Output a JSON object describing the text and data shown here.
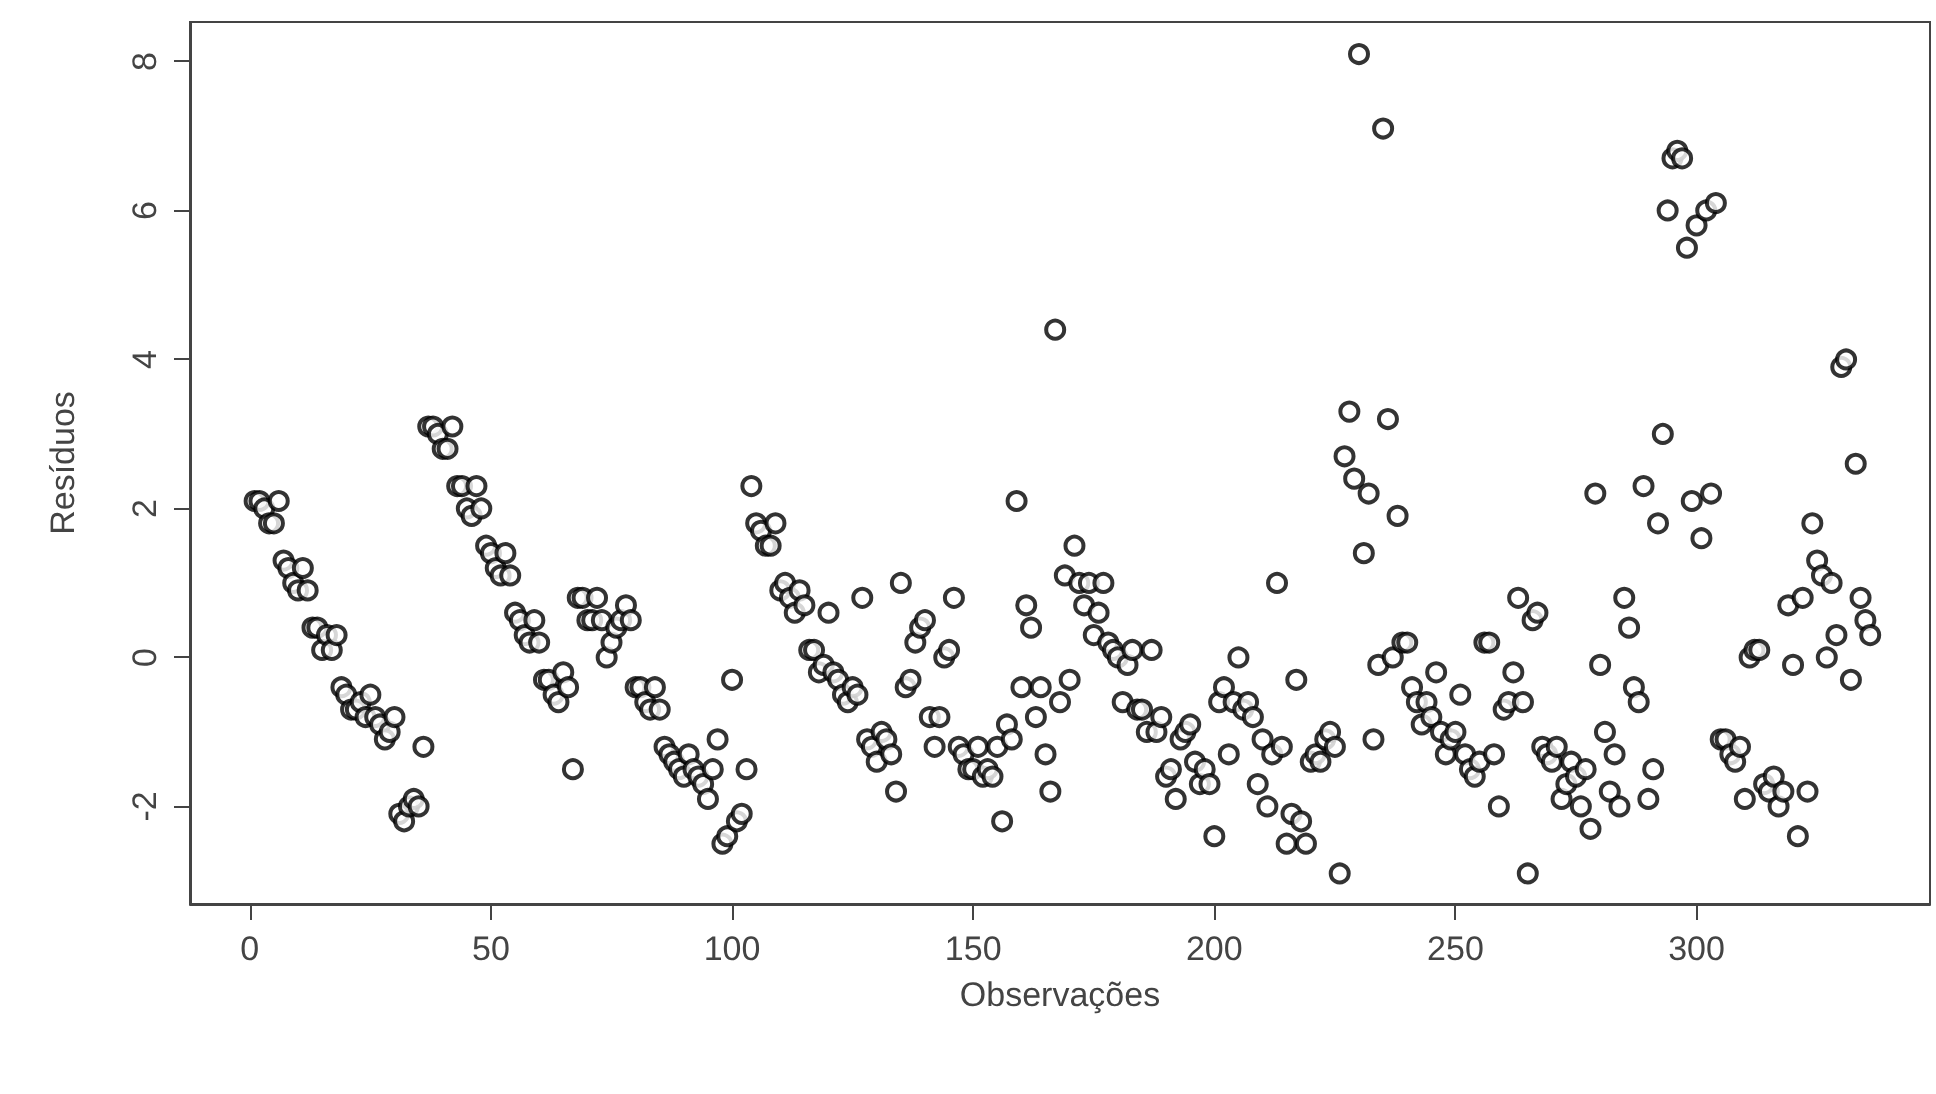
{
  "chart_data": {
    "type": "scatter",
    "xlabel": "Observações",
    "ylabel": "Resíduos",
    "x": [
      1,
      2,
      3,
      4,
      5,
      6,
      7,
      8,
      9,
      10,
      11,
      12,
      13,
      14,
      15,
      16,
      17,
      18,
      19,
      20,
      21,
      22,
      23,
      24,
      25,
      26,
      27,
      28,
      29,
      30,
      31,
      32,
      33,
      34,
      35,
      36,
      37,
      38,
      39,
      40,
      41,
      42,
      43,
      44,
      45,
      46,
      47,
      48,
      49,
      50,
      51,
      52,
      53,
      54,
      55,
      56,
      57,
      58,
      59,
      60,
      61,
      62,
      63,
      64,
      65,
      66,
      67,
      68,
      69,
      70,
      71,
      72,
      73,
      74,
      75,
      76,
      77,
      78,
      79,
      80,
      81,
      82,
      83,
      84,
      85,
      86,
      87,
      88,
      89,
      90,
      91,
      92,
      93,
      94,
      95,
      96,
      97,
      98,
      99,
      100,
      101,
      102,
      103,
      104,
      105,
      106,
      107,
      108,
      109,
      110,
      111,
      112,
      113,
      114,
      115,
      116,
      117,
      118,
      119,
      120,
      121,
      122,
      123,
      124,
      125,
      126,
      127,
      128,
      129,
      130,
      131,
      132,
      133,
      134,
      135,
      136,
      137,
      138,
      139,
      140,
      141,
      142,
      143,
      144,
      145,
      146,
      147,
      148,
      149,
      150,
      151,
      152,
      153,
      154,
      155,
      156,
      157,
      158,
      159,
      160,
      161,
      162,
      163,
      164,
      165,
      166,
      167,
      168,
      169,
      170,
      171,
      172,
      173,
      174,
      175,
      176,
      177,
      178,
      179,
      180,
      181,
      182,
      183,
      184,
      185,
      186,
      187,
      188,
      189,
      190,
      191,
      192,
      193,
      194,
      195,
      196,
      197,
      198,
      199,
      200,
      201,
      202,
      203,
      204,
      205,
      206,
      207,
      208,
      209,
      210,
      211,
      212,
      213,
      214,
      215,
      216,
      217,
      218,
      219,
      220,
      221,
      222,
      223,
      224,
      225,
      226,
      227,
      228,
      229,
      230,
      231,
      232,
      233,
      234,
      235,
      236,
      237,
      238,
      239,
      240,
      241,
      242,
      243,
      244,
      245,
      246,
      247,
      248,
      249,
      250,
      251,
      252,
      253,
      254,
      255,
      256,
      257,
      258,
      259,
      260,
      261,
      262,
      263,
      264,
      265,
      266,
      267,
      268,
      269,
      270,
      271,
      272,
      273,
      274,
      275,
      276,
      277,
      278,
      279,
      280,
      281,
      282,
      283,
      284,
      285,
      286,
      287,
      288,
      289,
      290,
      291,
      292,
      293,
      294,
      295,
      296,
      297,
      298,
      299,
      300,
      301,
      302,
      303,
      304,
      305,
      306,
      307,
      308,
      309,
      310,
      311,
      312,
      313,
      314,
      315,
      316,
      317,
      318,
      319,
      320,
      321,
      322,
      323,
      324,
      325,
      326,
      327,
      328,
      329,
      330,
      331,
      332,
      333,
      334,
      335,
      336
    ],
    "values": [
      2.1,
      2.1,
      2.0,
      1.8,
      1.8,
      2.1,
      1.3,
      1.2,
      1.0,
      0.9,
      1.2,
      0.9,
      0.4,
      0.4,
      0.1,
      0.3,
      0.1,
      0.3,
      -0.4,
      -0.5,
      -0.7,
      -0.7,
      -0.6,
      -0.8,
      -0.5,
      -0.8,
      -0.9,
      -1.1,
      -1.0,
      -0.8,
      -2.1,
      -2.2,
      -2.0,
      -1.9,
      -2.0,
      -1.2,
      3.1,
      3.1,
      3.0,
      2.8,
      2.8,
      3.1,
      2.3,
      2.3,
      2.0,
      1.9,
      2.3,
      2.0,
      1.5,
      1.4,
      1.2,
      1.1,
      1.4,
      1.1,
      0.6,
      0.5,
      0.3,
      0.2,
      0.5,
      0.2,
      -0.3,
      -0.3,
      -0.5,
      -0.6,
      -0.2,
      -0.4,
      -1.5,
      0.8,
      0.8,
      0.5,
      0.5,
      0.8,
      0.5,
      0.0,
      0.2,
      0.4,
      0.5,
      0.7,
      0.5,
      -0.4,
      -0.4,
      -0.6,
      -0.7,
      -0.4,
      -0.7,
      -1.2,
      -1.3,
      -1.4,
      -1.5,
      -1.6,
      -1.3,
      -1.5,
      -1.6,
      -1.7,
      -1.9,
      -1.5,
      -1.1,
      -2.5,
      -2.4,
      -0.3,
      -2.2,
      -2.1,
      -1.5,
      2.3,
      1.8,
      1.7,
      1.5,
      1.5,
      1.8,
      0.9,
      1.0,
      0.8,
      0.6,
      0.9,
      0.7,
      0.1,
      0.1,
      -0.2,
      -0.1,
      0.6,
      -0.2,
      -0.3,
      -0.5,
      -0.6,
      -0.4,
      -0.5,
      0.8,
      -1.1,
      -1.2,
      -1.4,
      -1.0,
      -1.1,
      -1.3,
      -1.8,
      1.0,
      -0.4,
      -0.3,
      0.2,
      0.4,
      0.5,
      -0.8,
      -1.2,
      -0.8,
      0.0,
      0.1,
      0.8,
      -1.2,
      -1.3,
      -1.5,
      -1.5,
      -1.2,
      -1.6,
      -1.5,
      -1.6,
      -1.2,
      -2.2,
      -0.9,
      -1.1,
      2.1,
      -0.4,
      0.7,
      0.4,
      -0.8,
      -0.4,
      -1.3,
      -1.8,
      4.4,
      -0.6,
      1.1,
      -0.3,
      1.5,
      1.0,
      0.7,
      1.0,
      0.3,
      0.6,
      1.0,
      0.2,
      0.1,
      0.0,
      -0.6,
      -0.1,
      0.1,
      -0.7,
      -0.7,
      -1.0,
      0.1,
      -1.0,
      -0.8,
      -1.6,
      -1.5,
      -1.9,
      -1.1,
      -1.0,
      -0.9,
      -1.4,
      -1.7,
      -1.5,
      -1.7,
      -2.4,
      -0.6,
      -0.4,
      -1.3,
      -0.6,
      0.0,
      -0.7,
      -0.6,
      -0.8,
      -1.7,
      -1.1,
      -2.0,
      -1.3,
      1.0,
      -1.2,
      -2.5,
      -2.1,
      -0.3,
      -2.2,
      -2.5,
      -1.4,
      -1.3,
      -1.4,
      -1.1,
      -1.0,
      -1.2,
      -2.9,
      2.7,
      3.3,
      2.4,
      8.1,
      1.4,
      2.2,
      -1.1,
      -0.1,
      7.1,
      3.2,
      0.0,
      1.9,
      0.2,
      0.2,
      -0.4,
      -0.6,
      -0.9,
      -0.6,
      -0.8,
      -0.2,
      -1.0,
      -1.3,
      -1.1,
      -1.0,
      -0.5,
      -1.3,
      -1.5,
      -1.6,
      -1.4,
      0.2,
      0.2,
      -1.3,
      -2.0,
      -0.7,
      -0.6,
      -0.2,
      0.8,
      -0.6,
      -2.9,
      0.5,
      0.6,
      -1.2,
      -1.3,
      -1.4,
      -1.2,
      -1.9,
      -1.7,
      -1.4,
      -1.6,
      -2.0,
      -1.5,
      -2.3,
      2.2,
      -0.1,
      -1.0,
      -1.8,
      -1.3,
      -2.0,
      0.8,
      0.4,
      -0.4,
      -0.6,
      2.3,
      -1.9,
      -1.5,
      1.8,
      3.0,
      6.0,
      6.7,
      6.8,
      6.7,
      5.5,
      2.1,
      5.8,
      1.6,
      6.0,
      2.2,
      6.1,
      -1.1,
      -1.1,
      -1.3,
      -1.4,
      -1.2,
      -1.9,
      0.0,
      0.1,
      0.1,
      -1.7,
      -1.8,
      -1.6,
      -2.0,
      -1.8,
      0.7,
      -0.1,
      -2.4,
      0.8,
      -1.8,
      1.8,
      1.3,
      1.1,
      0.0,
      1.0,
      0.3,
      3.9,
      4.0,
      -0.3,
      2.6,
      0.8,
      0.5,
      0.3
    ],
    "color": "#000000",
    "marker": "circle",
    "xlim": [
      -12.4,
      348.4
    ],
    "xticks": [
      0,
      50,
      100,
      150,
      200,
      250,
      300
    ],
    "ylim": [
      -3.31,
      8.53
    ],
    "yticks": [
      -2,
      0,
      2,
      4,
      6,
      8
    ],
    "grid": false
  }
}
